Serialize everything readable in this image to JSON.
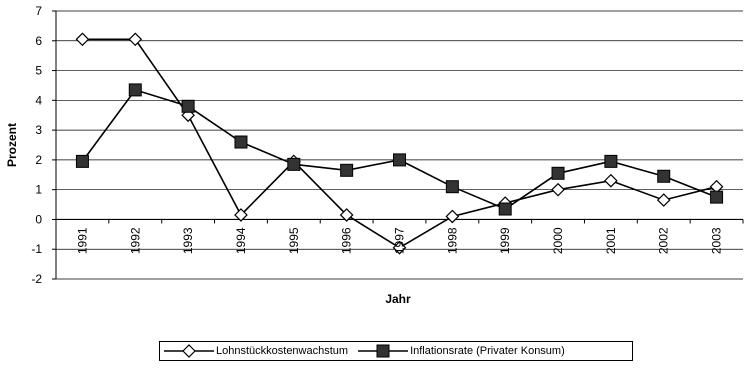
{
  "chart_data": {
    "type": "line",
    "title": "",
    "xlabel": "Jahr",
    "ylabel": "Prozent",
    "ylim": [
      -2,
      7
    ],
    "yticks": [
      "-2",
      "-1",
      "0",
      "1",
      "2",
      "3",
      "4",
      "5",
      "6",
      "7"
    ],
    "categories": [
      "1991",
      "1992",
      "1993",
      "1994",
      "1995",
      "1996",
      "1997",
      "1998",
      "1999",
      "2000",
      "2001",
      "2002",
      "2003"
    ],
    "grid": "horizontal",
    "legend_position": "bottom",
    "series": [
      {
        "name": "Lohnstückkostenwachstum",
        "marker": "diamond",
        "color": "#000000",
        "values": [
          6.05,
          6.05,
          3.5,
          0.15,
          1.95,
          0.15,
          -0.95,
          0.1,
          0.55,
          1.0,
          1.3,
          0.65,
          1.1
        ]
      },
      {
        "name": "Inflationsrate (Privater Konsum)",
        "marker": "square",
        "color": "#000000",
        "values": [
          1.95,
          4.35,
          3.8,
          2.6,
          1.85,
          1.65,
          2.0,
          1.1,
          0.35,
          1.55,
          1.95,
          1.45,
          0.75
        ]
      }
    ]
  }
}
